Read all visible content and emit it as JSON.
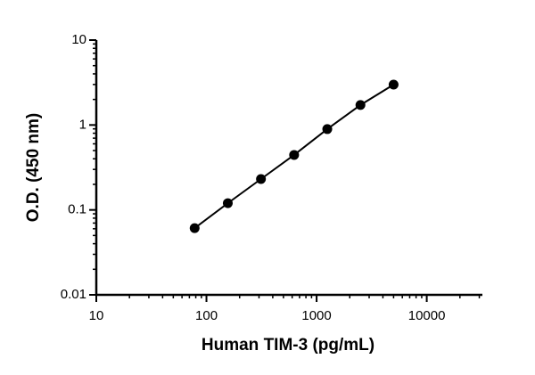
{
  "chart_data": {
    "type": "scatter",
    "x_label": "Human TIM-3 (pg/mL)",
    "y_label": "O.D. (450 nm)",
    "x_log": true,
    "y_log": true,
    "series": [
      {
        "color": "#000000",
        "x": [
          78.125,
          156.25,
          312.5,
          625,
          1250,
          2500,
          5000
        ],
        "values": [
          0.061,
          0.12,
          0.231,
          0.444,
          0.895,
          1.72,
          2.99
        ]
      }
    ],
    "xlim": [
      10,
      32000
    ],
    "xticks": [
      10,
      100,
      1000,
      10000
    ],
    "ylim": [
      0.01,
      10
    ],
    "yticks": [
      0.01,
      0.1,
      1,
      10
    ]
  }
}
